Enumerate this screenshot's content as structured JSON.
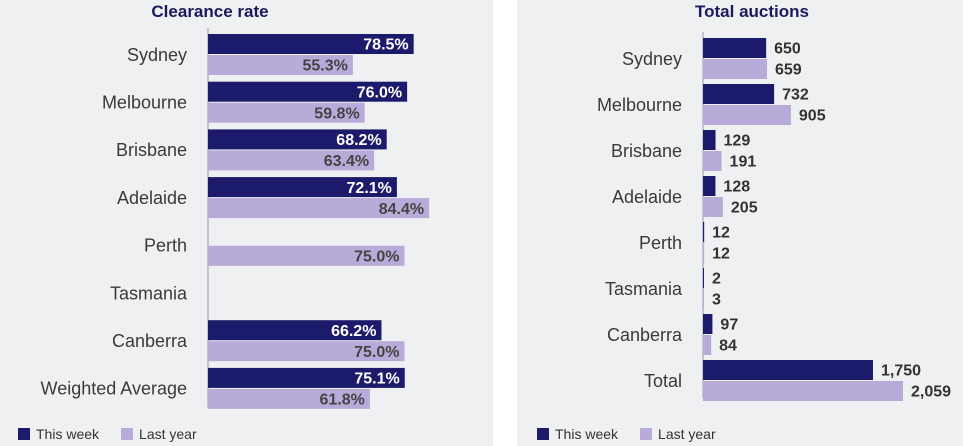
{
  "colors": {
    "this_week": "#1c1a6b",
    "last_year": "#b9abd9",
    "panel_bg": "#eef0f2"
  },
  "legend": {
    "this_week": "This week",
    "last_year": "Last year"
  },
  "chart_data": [
    {
      "type": "bar",
      "orientation": "horizontal",
      "title": "Clearance rate",
      "categories": [
        "Sydney",
        "Melbourne",
        "Brisbane",
        "Adelaide",
        "Perth",
        "Tasmania",
        "Canberra",
        "Weighted Average"
      ],
      "series": [
        {
          "name": "This week",
          "values": [
            78.5,
            76.0,
            68.2,
            72.1,
            null,
            null,
            66.2,
            75.1
          ],
          "labels": [
            "78.5%",
            "76.0%",
            "68.2%",
            "72.1%",
            "",
            "",
            "66.2%",
            "75.1%"
          ]
        },
        {
          "name": "Last year",
          "values": [
            55.3,
            59.8,
            63.4,
            84.4,
            75.0,
            null,
            75.0,
            61.8
          ],
          "labels": [
            "55.3%",
            "59.8%",
            "63.4%",
            "84.4%",
            "75.0%",
            "",
            "75.0%",
            "61.8%"
          ]
        }
      ],
      "xlim": [
        0,
        100
      ],
      "label_placement": "inside"
    },
    {
      "type": "bar",
      "orientation": "horizontal",
      "title": "Total auctions",
      "categories": [
        "Sydney",
        "Melbourne",
        "Brisbane",
        "Adelaide",
        "Perth",
        "Tasmania",
        "Canberra",
        "Total"
      ],
      "series": [
        {
          "name": "This week",
          "values": [
            650,
            732,
            129,
            128,
            12,
            2,
            97,
            1750
          ],
          "labels": [
            "650",
            "732",
            "129",
            "128",
            "12",
            "2",
            "97",
            "1,750"
          ]
        },
        {
          "name": "Last year",
          "values": [
            659,
            905,
            191,
            205,
            12,
            3,
            84,
            2059
          ],
          "labels": [
            "659",
            "905",
            "191",
            "205",
            "12",
            "3",
            "84",
            "2,059"
          ]
        }
      ],
      "xlim": [
        0,
        2059
      ],
      "label_placement": "outside"
    }
  ]
}
